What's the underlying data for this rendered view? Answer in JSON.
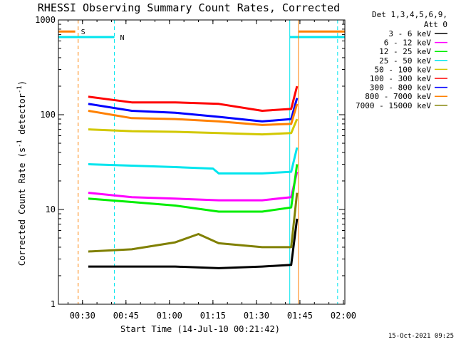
{
  "chart_data": {
    "type": "line",
    "title": "RHESSI Observing Summary Count Rates, Corrected",
    "xlabel": "Start Time (14-Jul-10 00:21:42)",
    "ylabel_main": "Corrected Count Rate (s",
    "ylabel_sup1": "-1",
    "ylabel_mid": " detector",
    "ylabel_sup2": "-1",
    "ylabel_end": ")",
    "y_scale": "log",
    "ylim": [
      1,
      1000
    ],
    "xlim": [
      "00:21:42",
      "02:00:30"
    ],
    "x_ticks": [
      "00:30",
      "00:45",
      "01:00",
      "01:15",
      "01:30",
      "01:45",
      "02:00"
    ],
    "y_ticks": [
      "1",
      "10",
      "100",
      "1000"
    ],
    "grid": false,
    "legend_placement": "outside-right",
    "legend_header": [
      "Det 1,3,4,5,6,9,",
      "Att 0"
    ],
    "flags": [
      {
        "label": "S",
        "color": "#ff8000",
        "segments": [
          [
            "00:21:42",
            "00:27:30"
          ],
          [
            "01:44:30",
            "02:00:30"
          ]
        ],
        "y": 755
      },
      {
        "label": "N",
        "color": "#00e5ee",
        "segments": [
          [
            "00:21:42",
            "00:41:00"
          ],
          [
            "01:41:30",
            "02:00:30"
          ]
        ],
        "y": 660
      }
    ],
    "vertical_lines": [
      {
        "x": "00:28:30",
        "color": "#ff8000",
        "style": "dashed"
      },
      {
        "x": "00:41:00",
        "color": "#00e5ee",
        "style": "dashed"
      },
      {
        "x": "01:41:30",
        "color": "#00e5ee",
        "style": "solid"
      },
      {
        "x": "01:44:30",
        "color": "#ff8000",
        "style": "solid"
      },
      {
        "x": "01:58:00",
        "color": "#00e5ee",
        "style": "dashed"
      }
    ],
    "series": [
      {
        "name": "3 - 6 keV",
        "color": "#000000",
        "x": [
          "00:32:00",
          "00:47:00",
          "01:02:00",
          "01:17:00",
          "01:32:00",
          "01:42:00",
          "01:44:00"
        ],
        "y": [
          2.5,
          2.5,
          2.5,
          2.4,
          2.5,
          2.6,
          8
        ]
      },
      {
        "name": "6 - 12 keV",
        "color": "#ff00ff",
        "x": [
          "00:32:00",
          "00:47:00",
          "01:02:00",
          "01:17:00",
          "01:32:00",
          "01:42:00",
          "01:44:00"
        ],
        "y": [
          15,
          13.5,
          13,
          12.5,
          12.5,
          13.5,
          25
        ]
      },
      {
        "name": "12 - 25 keV",
        "color": "#00ee00",
        "x": [
          "00:32:00",
          "00:47:00",
          "01:02:00",
          "01:17:00",
          "01:32:00",
          "01:42:00",
          "01:44:00"
        ],
        "y": [
          13,
          12,
          11,
          9.5,
          9.5,
          10.5,
          30
        ]
      },
      {
        "name": "25 - 50 keV",
        "color": "#00e5ee",
        "x": [
          "00:32:00",
          "00:47:00",
          "01:02:00",
          "01:15:00",
          "01:17:00",
          "01:32:00",
          "01:42:00",
          "01:44:00"
        ],
        "y": [
          30,
          29,
          28,
          27,
          24,
          24,
          25,
          45
        ]
      },
      {
        "name": "50 - 100 keV",
        "color": "#d2c800",
        "x": [
          "00:32:00",
          "00:47:00",
          "01:02:00",
          "01:17:00",
          "01:32:00",
          "01:42:00",
          "01:44:00"
        ],
        "y": [
          70,
          67,
          66,
          64,
          62,
          64,
          90
        ]
      },
      {
        "name": "100 - 300 keV",
        "color": "#ff0000",
        "x": [
          "00:32:00",
          "00:47:00",
          "01:02:00",
          "01:17:00",
          "01:32:00",
          "01:42:00",
          "01:44:00"
        ],
        "y": [
          155,
          135,
          135,
          130,
          110,
          115,
          200
        ]
      },
      {
        "name": "300 - 800 keV",
        "color": "#0000ff",
        "x": [
          "00:32:00",
          "00:47:00",
          "01:02:00",
          "01:17:00",
          "01:32:00",
          "01:42:00",
          "01:44:00"
        ],
        "y": [
          130,
          110,
          105,
          95,
          85,
          90,
          150
        ]
      },
      {
        "name": "800 - 7000 keV",
        "color": "#ff8000",
        "x": [
          "00:32:00",
          "00:47:00",
          "01:02:00",
          "01:17:00",
          "01:32:00",
          "01:42:00",
          "01:44:00"
        ],
        "y": [
          110,
          92,
          90,
          85,
          78,
          80,
          130
        ]
      },
      {
        "name": "7000 - 15000 keV",
        "color": "#808000",
        "x": [
          "00:32:00",
          "00:47:00",
          "01:02:00",
          "01:10:00",
          "01:17:00",
          "01:32:00",
          "01:42:00",
          "01:44:00"
        ],
        "y": [
          3.6,
          3.8,
          4.5,
          5.5,
          4.4,
          4.0,
          4.0,
          15
        ]
      }
    ]
  },
  "timestamp": "15-Oct-2021 09:25"
}
